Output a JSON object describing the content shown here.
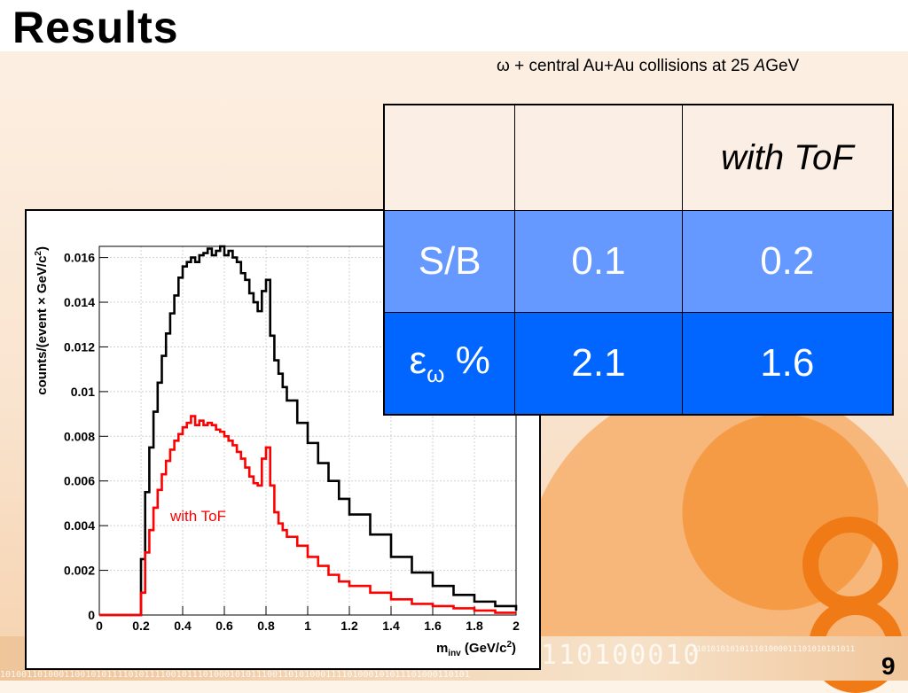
{
  "slide": {
    "title": "Results",
    "subtitle_pre": "ω + central Au+Au collisions at 25 ",
    "subtitle_italic": "A",
    "subtitle_post": "GeV",
    "page_number": "9",
    "binary_line1": "110100010",
    "binary_line2": "1101010101011101000011101010101011",
    "binary_line3": "1010011010001100101011110101111001011101000101011100110101000111101000101011101000110101"
  },
  "table": {
    "header": [
      "",
      "",
      "with ToF"
    ],
    "rows": [
      {
        "label_main": "S/B",
        "label_sub": "",
        "label_tail": "",
        "values": [
          "0.1",
          "0.2"
        ]
      },
      {
        "label_main": "ε",
        "label_sub": "ω",
        "label_tail": " %",
        "values": [
          "2.1",
          "1.6"
        ]
      }
    ]
  },
  "chart_data": {
    "type": "line",
    "title": "",
    "xlabel_main": "m",
    "xlabel_sub": "inv",
    "xlabel_units": " (GeV/c",
    "xlabel_sup": "2",
    "xlabel_close": ")",
    "ylabel_main": "counts/(event × GeV/c",
    "ylabel_sup": "2",
    "ylabel_close": ")",
    "xlim": [
      0,
      2
    ],
    "ylim": [
      0,
      0.0165
    ],
    "x_ticks": [
      "0",
      "0.2",
      "0.4",
      "0.6",
      "0.8",
      "1",
      "1.2",
      "1.4",
      "1.6",
      "1.8",
      "2"
    ],
    "y_ticks": [
      "0",
      "0.002",
      "0.004",
      "0.006",
      "0.008",
      "0.01",
      "0.012",
      "0.014",
      "0.016"
    ],
    "grid": true,
    "annotation": "with ToF",
    "series": [
      {
        "color": "#000000",
        "x": [
          0,
          0.19,
          0.2,
          0.22,
          0.24,
          0.26,
          0.28,
          0.3,
          0.32,
          0.34,
          0.36,
          0.38,
          0.4,
          0.42,
          0.44,
          0.46,
          0.48,
          0.5,
          0.52,
          0.54,
          0.56,
          0.58,
          0.6,
          0.62,
          0.64,
          0.66,
          0.68,
          0.7,
          0.72,
          0.74,
          0.76,
          0.78,
          0.8,
          0.82,
          0.84,
          0.86,
          0.88,
          0.9,
          0.95,
          1.0,
          1.05,
          1.1,
          1.15,
          1.2,
          1.3,
          1.4,
          1.5,
          1.6,
          1.7,
          1.8,
          1.9,
          2.0
        ],
        "y": [
          0,
          0,
          0.0025,
          0.0055,
          0.0075,
          0.0091,
          0.0104,
          0.0116,
          0.0126,
          0.0135,
          0.0143,
          0.0151,
          0.0156,
          0.0158,
          0.016,
          0.0158,
          0.0161,
          0.0162,
          0.0164,
          0.0161,
          0.0163,
          0.0165,
          0.0161,
          0.0163,
          0.016,
          0.0158,
          0.0153,
          0.015,
          0.0144,
          0.014,
          0.0136,
          0.0145,
          0.015,
          0.0125,
          0.0114,
          0.0108,
          0.0102,
          0.0096,
          0.0086,
          0.0077,
          0.0068,
          0.006,
          0.0052,
          0.0045,
          0.0036,
          0.0026,
          0.0019,
          0.0013,
          0.0009,
          0.0006,
          0.0004,
          0.0002
        ]
      },
      {
        "color": "#ff0000",
        "x": [
          0,
          0.19,
          0.2,
          0.22,
          0.24,
          0.26,
          0.28,
          0.3,
          0.32,
          0.34,
          0.36,
          0.38,
          0.4,
          0.42,
          0.44,
          0.46,
          0.48,
          0.5,
          0.52,
          0.54,
          0.56,
          0.58,
          0.6,
          0.62,
          0.64,
          0.66,
          0.68,
          0.7,
          0.72,
          0.74,
          0.76,
          0.78,
          0.8,
          0.82,
          0.84,
          0.86,
          0.88,
          0.9,
          0.95,
          1.0,
          1.05,
          1.1,
          1.15,
          1.2,
          1.3,
          1.4,
          1.5,
          1.6,
          1.7,
          1.8,
          1.9,
          2.0
        ],
        "y": [
          0,
          0,
          0.001,
          0.0028,
          0.0038,
          0.0048,
          0.0056,
          0.0063,
          0.0069,
          0.0074,
          0.0078,
          0.0081,
          0.0084,
          0.0086,
          0.0089,
          0.0085,
          0.0087,
          0.0085,
          0.0086,
          0.0085,
          0.0083,
          0.0082,
          0.008,
          0.0078,
          0.0076,
          0.0073,
          0.007,
          0.0066,
          0.0062,
          0.0059,
          0.0058,
          0.007,
          0.0075,
          0.0058,
          0.0046,
          0.0041,
          0.0038,
          0.0035,
          0.0031,
          0.0026,
          0.0022,
          0.0018,
          0.0015,
          0.0013,
          0.001,
          0.0007,
          0.0005,
          0.0004,
          0.0003,
          0.0002,
          0.0001,
          0.0001
        ]
      }
    ]
  }
}
